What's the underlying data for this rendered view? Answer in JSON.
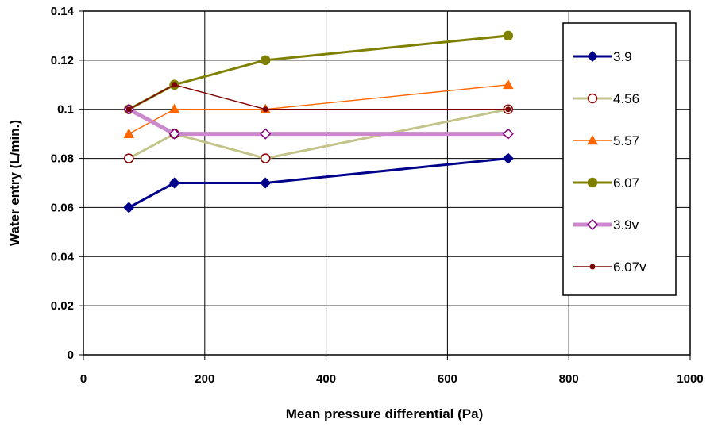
{
  "chart_data": {
    "type": "line",
    "xlabel": "Mean pressure differential (Pa)",
    "ylabel": "Water entry (L/min.)",
    "xlim": [
      0,
      1000
    ],
    "ylim": [
      0,
      0.14
    ],
    "x_ticks": [
      "0",
      "200",
      "400",
      "600",
      "800",
      "1000"
    ],
    "y_ticks": [
      "0",
      "0.02",
      "0.04",
      "0.06",
      "0.08",
      "0.1",
      "0.12",
      "0.14"
    ],
    "grid": true,
    "legend_position": "right",
    "series": [
      {
        "name": "3.9",
        "color": "#00008B",
        "marker": "diamond-filled",
        "line_width": "thick",
        "x": [
          75,
          150,
          300,
          700
        ],
        "y": [
          0.06,
          0.07,
          0.07,
          0.08
        ]
      },
      {
        "name": "4.56",
        "color": "#C4C48A",
        "marker": "circle-open",
        "marker_color": "#8B0000",
        "line_width": "thick",
        "x": [
          75,
          150,
          300,
          700
        ],
        "y": [
          0.08,
          0.09,
          0.08,
          0.1
        ]
      },
      {
        "name": "5.57",
        "color": "#FF6600",
        "marker": "triangle-filled",
        "line_width": "thin",
        "x": [
          75,
          150,
          300,
          700
        ],
        "y": [
          0.09,
          0.1,
          0.1,
          0.11
        ]
      },
      {
        "name": "6.07",
        "color": "#808000",
        "marker": "circle-filled",
        "line_width": "thick",
        "x": [
          75,
          150,
          300,
          700
        ],
        "y": [
          0.1,
          0.11,
          0.12,
          0.13
        ]
      },
      {
        "name": "3.9v",
        "color": "#CC88CC",
        "marker": "diamond-open",
        "marker_color": "#800080",
        "line_width": "very-thick",
        "x": [
          75,
          150,
          300,
          700
        ],
        "y": [
          0.1,
          0.09,
          0.09,
          0.09
        ]
      },
      {
        "name": "6.07v",
        "color": "#800000",
        "marker": "dot-filled",
        "line_width": "thin",
        "x": [
          75,
          150,
          300,
          700
        ],
        "y": [
          0.1,
          0.11,
          0.1,
          0.1
        ]
      }
    ]
  }
}
